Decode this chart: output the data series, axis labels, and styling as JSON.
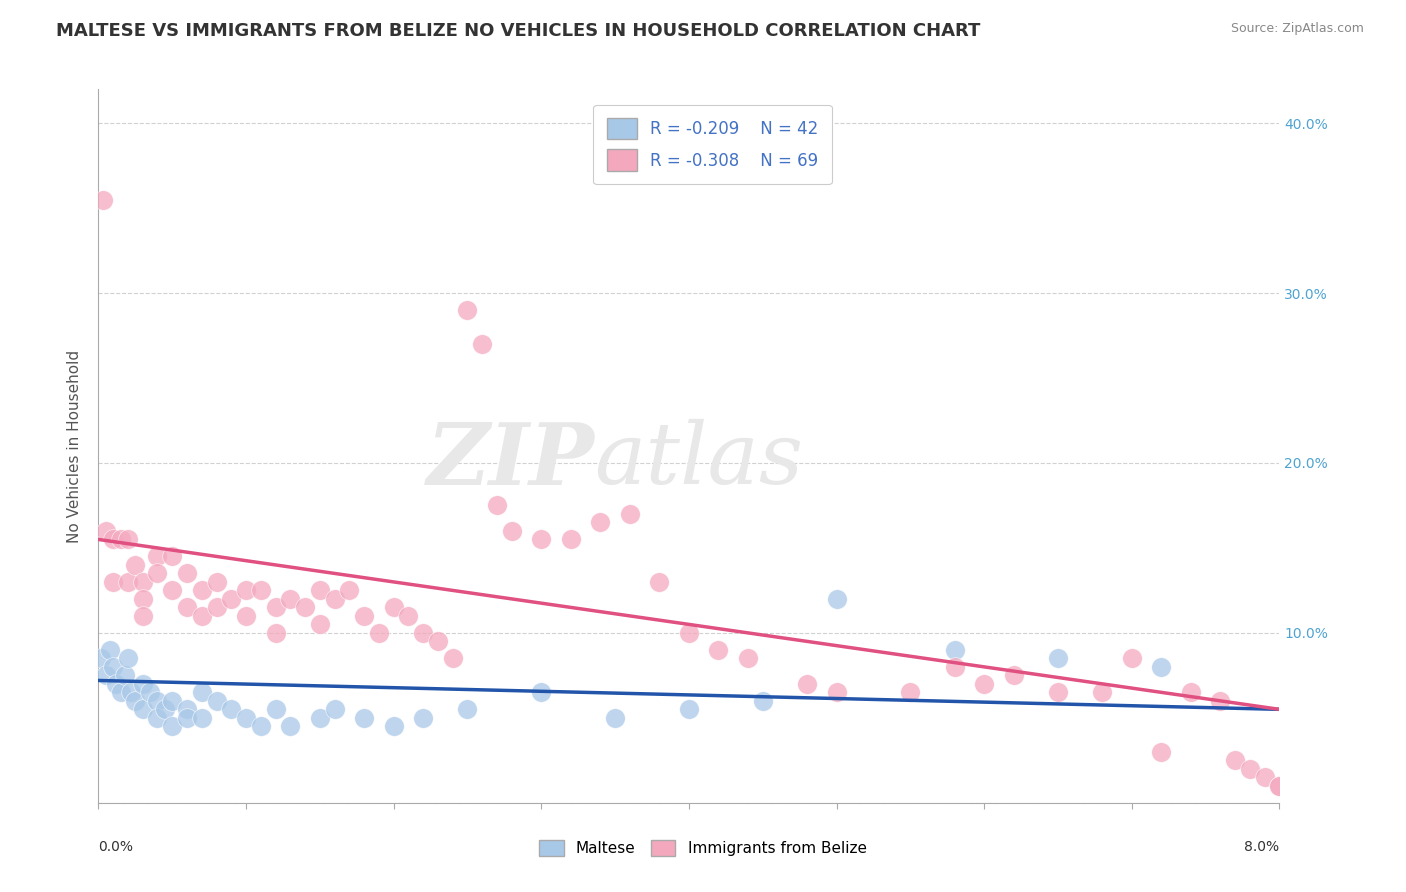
{
  "title": "MALTESE VS IMMIGRANTS FROM BELIZE NO VEHICLES IN HOUSEHOLD CORRELATION CHART",
  "source": "Source: ZipAtlas.com",
  "ylabel": "No Vehicles in Household",
  "legend_blue_r": "R = -0.209",
  "legend_blue_n": "N = 42",
  "legend_pink_r": "R = -0.308",
  "legend_pink_n": "N = 69",
  "legend_text_color": "#4472c4",
  "blue_color": "#a8c8e8",
  "pink_color": "#f4a8be",
  "blue_line_color": "#2255aa",
  "pink_line_color": "#e05080",
  "xmin": 0.0,
  "xmax": 0.08,
  "ymin": 0.0,
  "ymax": 0.42,
  "yticks": [
    0.0,
    0.1,
    0.2,
    0.3,
    0.4
  ],
  "ytick_labels_right": [
    "",
    "10.0%",
    "20.0%",
    "30.0%",
    "40.0%"
  ],
  "blue_scatter_x": [
    0.0002,
    0.0005,
    0.0008,
    0.001,
    0.0012,
    0.0015,
    0.0018,
    0.002,
    0.0022,
    0.0025,
    0.003,
    0.003,
    0.0035,
    0.004,
    0.004,
    0.0045,
    0.005,
    0.005,
    0.006,
    0.006,
    0.007,
    0.007,
    0.008,
    0.009,
    0.01,
    0.011,
    0.012,
    0.013,
    0.015,
    0.016,
    0.018,
    0.02,
    0.022,
    0.025,
    0.03,
    0.035,
    0.04,
    0.045,
    0.05,
    0.058,
    0.065,
    0.072
  ],
  "blue_scatter_y": [
    0.085,
    0.075,
    0.09,
    0.08,
    0.07,
    0.065,
    0.075,
    0.085,
    0.065,
    0.06,
    0.07,
    0.055,
    0.065,
    0.06,
    0.05,
    0.055,
    0.06,
    0.045,
    0.055,
    0.05,
    0.065,
    0.05,
    0.06,
    0.055,
    0.05,
    0.045,
    0.055,
    0.045,
    0.05,
    0.055,
    0.05,
    0.045,
    0.05,
    0.055,
    0.065,
    0.05,
    0.055,
    0.06,
    0.12,
    0.09,
    0.085,
    0.08
  ],
  "pink_scatter_x": [
    0.0003,
    0.0005,
    0.001,
    0.001,
    0.0015,
    0.002,
    0.002,
    0.0025,
    0.003,
    0.003,
    0.003,
    0.004,
    0.004,
    0.005,
    0.005,
    0.006,
    0.006,
    0.007,
    0.007,
    0.008,
    0.008,
    0.009,
    0.01,
    0.01,
    0.011,
    0.012,
    0.012,
    0.013,
    0.014,
    0.015,
    0.015,
    0.016,
    0.017,
    0.018,
    0.019,
    0.02,
    0.021,
    0.022,
    0.023,
    0.024,
    0.025,
    0.026,
    0.027,
    0.028,
    0.03,
    0.032,
    0.034,
    0.036,
    0.038,
    0.04,
    0.042,
    0.044,
    0.048,
    0.05,
    0.055,
    0.058,
    0.06,
    0.062,
    0.065,
    0.068,
    0.07,
    0.072,
    0.074,
    0.076,
    0.077,
    0.078,
    0.079,
    0.08,
    0.08
  ],
  "pink_scatter_y": [
    0.355,
    0.16,
    0.155,
    0.13,
    0.155,
    0.155,
    0.13,
    0.14,
    0.13,
    0.12,
    0.11,
    0.145,
    0.135,
    0.145,
    0.125,
    0.135,
    0.115,
    0.125,
    0.11,
    0.13,
    0.115,
    0.12,
    0.125,
    0.11,
    0.125,
    0.115,
    0.1,
    0.12,
    0.115,
    0.125,
    0.105,
    0.12,
    0.125,
    0.11,
    0.1,
    0.115,
    0.11,
    0.1,
    0.095,
    0.085,
    0.29,
    0.27,
    0.175,
    0.16,
    0.155,
    0.155,
    0.165,
    0.17,
    0.13,
    0.1,
    0.09,
    0.085,
    0.07,
    0.065,
    0.065,
    0.08,
    0.07,
    0.075,
    0.065,
    0.065,
    0.085,
    0.03,
    0.065,
    0.06,
    0.025,
    0.02,
    0.015,
    0.01,
    0.01
  ],
  "blue_line_x": [
    0.0,
    0.08
  ],
  "blue_line_y": [
    0.072,
    0.055
  ],
  "pink_line_x": [
    0.0,
    0.08
  ],
  "pink_line_y": [
    0.155,
    0.055
  ],
  "background_color": "#ffffff",
  "grid_color": "#cccccc",
  "title_fontsize": 13,
  "label_fontsize": 11,
  "tick_fontsize": 10
}
